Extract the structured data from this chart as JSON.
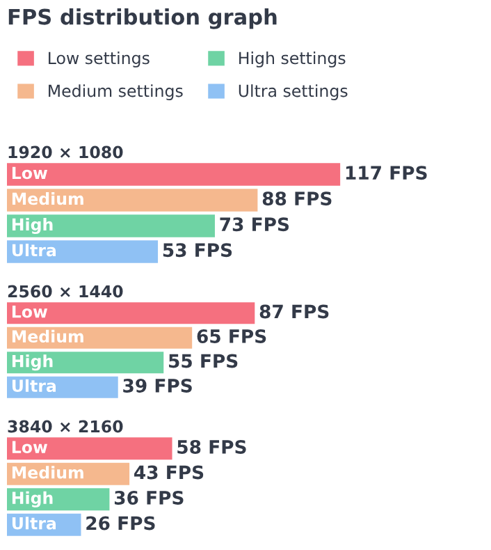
{
  "chart_data": [
    {
      "type": "bar",
      "orientation": "horizontal",
      "title": "FPS distribution graph",
      "subtitle": "1920 × 1080",
      "legend": "top",
      "categories": [
        "Low",
        "Medium",
        "High",
        "Ultra"
      ],
      "series": [
        {
          "name": "Low settings",
          "color": "#f5707f",
          "values": [
            117,
            null,
            null,
            null
          ],
          "value_labels": [
            "117 FPS",
            null,
            null,
            null
          ]
        },
        {
          "name": "Medium settings",
          "color": "#f5b88e",
          "values": [
            null,
            88,
            null,
            null
          ],
          "value_labels": [
            null,
            "88 FPS",
            null,
            null
          ]
        },
        {
          "name": "High settings",
          "color": "#6fd3a4",
          "values": [
            null,
            null,
            73,
            null
          ],
          "value_labels": [
            null,
            null,
            "73 FPS",
            null
          ]
        },
        {
          "name": "Ultra settings",
          "color": "#8fc1f4",
          "values": [
            null,
            null,
            null,
            53
          ],
          "value_labels": [
            null,
            null,
            null,
            "53 FPS"
          ]
        }
      ]
    },
    {
      "type": "bar",
      "orientation": "horizontal",
      "subtitle": "2560 × 1440",
      "categories": [
        "Low",
        "Medium",
        "High",
        "Ultra"
      ],
      "series": [
        {
          "color": "#f5707f",
          "values": [
            87,
            null,
            null,
            null
          ],
          "value_labels": [
            "87 FPS",
            null,
            null,
            null
          ]
        },
        {
          "color": "#f5b88e",
          "values": [
            null,
            65,
            null,
            null
          ],
          "value_labels": [
            null,
            "65 FPS",
            null,
            null
          ]
        },
        {
          "color": "#6fd3a4",
          "values": [
            null,
            null,
            55,
            null
          ],
          "value_labels": [
            null,
            null,
            "55 FPS",
            null
          ]
        },
        {
          "color": "#8fc1f4",
          "values": [
            null,
            null,
            null,
            39
          ],
          "value_labels": [
            null,
            null,
            null,
            "39 FPS"
          ]
        }
      ]
    },
    {
      "type": "bar",
      "orientation": "horizontal",
      "subtitle": "3840 × 2160",
      "categories": [
        "Low",
        "Medium",
        "High",
        "Ultra"
      ],
      "series": [
        {
          "color": "#f5707f",
          "values": [
            58,
            null,
            null,
            null
          ],
          "value_labels": [
            "58 FPS",
            null,
            null,
            null
          ]
        },
        {
          "color": "#f5b88e",
          "values": [
            null,
            43,
            null,
            null
          ],
          "value_labels": [
            null,
            "43 FPS",
            null,
            null
          ]
        },
        {
          "color": "#6fd3a4",
          "values": [
            null,
            null,
            36,
            null
          ],
          "value_labels": [
            null,
            null,
            "36 FPS",
            null
          ]
        },
        {
          "color": "#8fc1f4",
          "values": [
            null,
            null,
            null,
            26
          ],
          "value_labels": [
            null,
            null,
            null,
            "26 FPS"
          ]
        }
      ]
    }
  ]
}
